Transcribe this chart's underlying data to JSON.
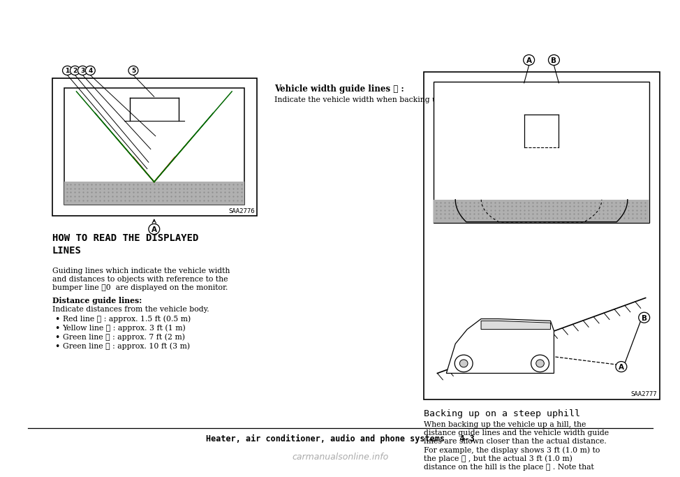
{
  "bg_color": "#ffffff",
  "page_width": 9.6,
  "page_height": 6.64,
  "left_diagram_title": "HOW TO READ THE DISPLAYED\nLINES",
  "distance_guide_title": "Distance guide lines:",
  "distance_guide_intro": "Indicate distances from the vehicle body.",
  "bullet_items": [
    "Red line ① : approx. 1.5 ft (0.5 m)",
    "Yellow line ② : approx. 3 ft (1 m)",
    "Green line ③ : approx. 7 ft (2 m)",
    "Green line ④ : approx. 10 ft (3 m)"
  ],
  "right_section_title": "Vehicle width guide lines ⑤ :",
  "right_section_body": "Indicate the vehicle width when backing up.",
  "right_caption_title": "Backing up on a steep uphill",
  "footer_text": "Heater, air conditioner, audio and phone systems   4-3",
  "watermark": "carmanualsonline.info",
  "saa_left": "SAA2776",
  "saa_right": "SAA2777",
  "body_lines": [
    "Guiding lines which indicate the vehicle width",
    "and distances to objects with reference to the",
    "bumper line ⑀0  are displayed on the monitor."
  ],
  "cap_body_lines": [
    "When backing up the vehicle up a hill, the",
    "distance guide lines and the vehicle width guide",
    "lines are shown closer than the actual distance.",
    "For example, the display shows 3 ft (1.0 m) to",
    "the place ① , but the actual 3 ft (1.0 m)",
    "distance on the hill is the place ② . Note that"
  ]
}
